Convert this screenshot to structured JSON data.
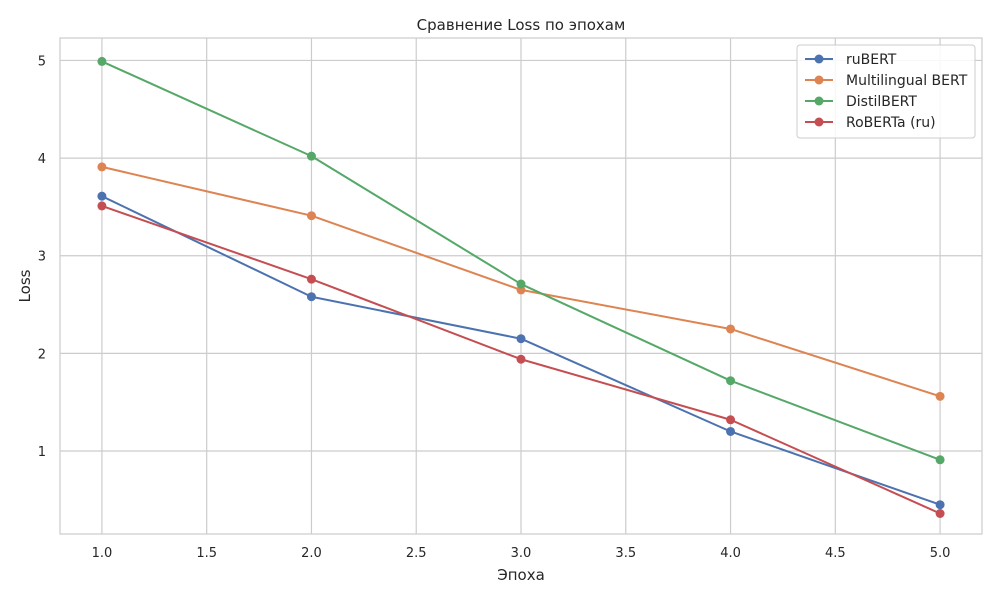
{
  "chart_data": {
    "type": "line",
    "title": "Сравнение Loss по эпохам",
    "xlabel": "Эпоха",
    "ylabel": "Loss",
    "xlim": [
      0.8,
      5.2
    ],
    "ylim": [
      0.15,
      5.23
    ],
    "xticks": [
      1.0,
      1.5,
      2.0,
      2.5,
      3.0,
      3.5,
      4.0,
      4.5,
      5.0
    ],
    "xtick_labels": [
      "1.0",
      "1.5",
      "2.0",
      "2.5",
      "3.0",
      "3.5",
      "4.0",
      "4.5",
      "5.0"
    ],
    "yticks": [
      1,
      2,
      3,
      4,
      5
    ],
    "ytick_labels": [
      "1",
      "2",
      "3",
      "4",
      "5"
    ],
    "grid": true,
    "legend_position": "top-right",
    "x": [
      1,
      2,
      3,
      4,
      5
    ],
    "series": [
      {
        "name": "ruBERT",
        "color": "#4c72b0",
        "values": [
          3.61,
          2.58,
          2.15,
          1.2,
          0.45
        ]
      },
      {
        "name": "Multilingual BERT",
        "color": "#dd8452",
        "values": [
          3.91,
          3.41,
          2.65,
          2.25,
          1.56
        ]
      },
      {
        "name": "DistilBERT",
        "color": "#55a868",
        "values": [
          4.99,
          4.02,
          2.71,
          1.72,
          0.91
        ]
      },
      {
        "name": "RoBERTa (ru)",
        "color": "#c44e52",
        "values": [
          3.51,
          2.76,
          1.94,
          1.32,
          0.36
        ]
      }
    ]
  }
}
